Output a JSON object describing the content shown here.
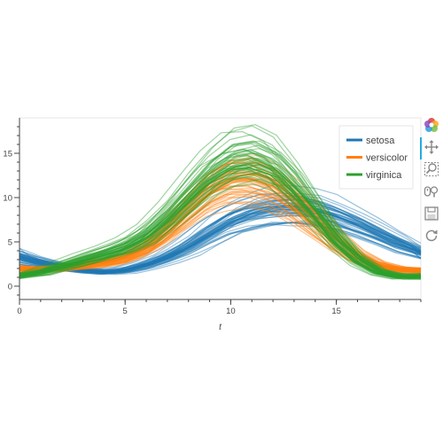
{
  "chart_data": {
    "type": "line",
    "title": "",
    "xlabel": "t",
    "ylabel": "",
    "xlim": [
      0,
      19
    ],
    "ylim": [
      -1.5,
      19
    ],
    "xticks": [
      "0",
      "5",
      "10",
      "15"
    ],
    "yticks": [
      "0",
      "5",
      "10",
      "15"
    ],
    "grid": false,
    "legend_position": "top-right",
    "curves_per_series": 50,
    "series": [
      {
        "name": "setosa",
        "color": "#1f77b4",
        "x": [
          0,
          1,
          2,
          3,
          4,
          5,
          6,
          7,
          8,
          9,
          10,
          11,
          12,
          13,
          14,
          15,
          16,
          17,
          18,
          19
        ],
        "y": [
          3.3,
          2.7,
          2.2,
          1.8,
          1.6,
          1.8,
          2.4,
          3.3,
          4.5,
          6.0,
          7.4,
          8.3,
          8.8,
          8.9,
          8.6,
          7.9,
          7.0,
          5.9,
          4.8,
          3.8
        ],
        "spread": [
          1.1,
          0.7,
          0.4,
          0.4,
          0.4,
          0.4,
          0.5,
          0.6,
          0.8,
          1.0,
          1.1,
          1.2,
          1.3,
          1.3,
          1.2,
          1.1,
          1.0,
          0.9,
          0.8,
          0.7
        ]
      },
      {
        "name": "versicolor",
        "color": "#ff7f0e",
        "x": [
          0,
          1,
          2,
          3,
          4,
          5,
          6,
          7,
          8,
          9,
          10,
          11,
          12,
          13,
          14,
          15,
          16,
          17,
          18,
          19
        ],
        "y": [
          1.9,
          1.8,
          2.0,
          2.3,
          2.6,
          3.1,
          4.2,
          6.0,
          8.3,
          10.4,
          11.6,
          11.8,
          11.0,
          9.3,
          7.2,
          5.0,
          3.3,
          2.3,
          1.8,
          1.7
        ],
        "spread": [
          0.6,
          0.5,
          0.4,
          0.4,
          0.5,
          0.6,
          0.8,
          1.0,
          1.2,
          1.3,
          1.4,
          1.4,
          1.3,
          1.2,
          1.1,
          0.9,
          0.7,
          0.5,
          0.5,
          0.5
        ]
      },
      {
        "name": "virginica",
        "color": "#2ca02c",
        "x": [
          0,
          1,
          2,
          3,
          4,
          5,
          6,
          7,
          8,
          9,
          10,
          11,
          12,
          13,
          14,
          15,
          16,
          17,
          18,
          19
        ],
        "y": [
          1.2,
          1.6,
          2.3,
          3.0,
          3.7,
          4.5,
          5.8,
          7.8,
          10.2,
          12.6,
          14.2,
          14.6,
          13.6,
          11.2,
          8.3,
          5.3,
          3.0,
          1.6,
          1.1,
          1.1
        ],
        "spread": [
          0.6,
          0.5,
          0.5,
          0.6,
          0.7,
          0.8,
          1.0,
          1.2,
          1.4,
          1.5,
          1.6,
          1.6,
          1.5,
          1.4,
          1.2,
          1.0,
          0.8,
          0.6,
          0.5,
          0.5
        ]
      }
    ]
  },
  "toolbar": {
    "tools": [
      "bokeh-logo-icon",
      "pan-icon",
      "box-zoom-icon",
      "wheel-zoom-icon",
      "save-icon",
      "reset-icon"
    ]
  }
}
